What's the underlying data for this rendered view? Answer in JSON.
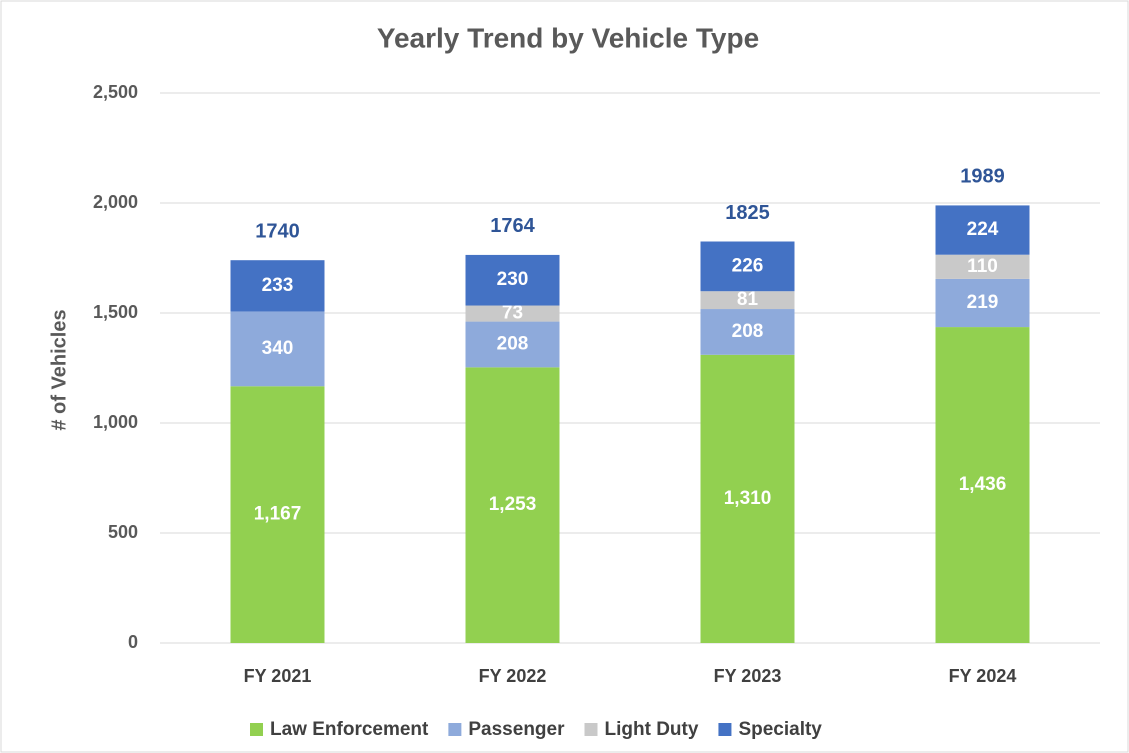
{
  "chart_data": {
    "type": "stacked_bar",
    "title": "Yearly Trend by Vehicle Type",
    "ylabel": "# of Vehicles",
    "categories": [
      "FY 2021",
      "FY 2022",
      "FY 2023",
      "FY 2024"
    ],
    "series": [
      {
        "name": "Law Enforcement",
        "color": "#92d050",
        "values": [
          1167,
          1253,
          1310,
          1436
        ],
        "value_labels": [
          "1,167",
          "1,253",
          "1,310",
          "1,436"
        ]
      },
      {
        "name": "Passenger",
        "color": "#8eaadb",
        "values": [
          340,
          208,
          208,
          219
        ]
      },
      {
        "name": "Light Duty",
        "color": "#c9c9c9",
        "values": [
          0,
          73,
          81,
          110
        ],
        "value_labels": [
          null,
          "73",
          "81",
          "110"
        ]
      },
      {
        "name": "Specialty",
        "color": "#4472c4",
        "values": [
          233,
          230,
          226,
          224
        ]
      }
    ],
    "totals": [
      1740,
      1764,
      1825,
      1989
    ],
    "totals_color": "#2f5597",
    "ylim": [
      0,
      2500
    ],
    "yticks": [
      0,
      500,
      {
        "value": 1000,
        "label": "1,000"
      },
      {
        "value": 1500,
        "label": "1,500"
      },
      {
        "value": 2000,
        "label": "2,000"
      },
      {
        "value": 2500,
        "label": "2,500"
      }
    ],
    "grid": true,
    "legend": "bottom"
  }
}
